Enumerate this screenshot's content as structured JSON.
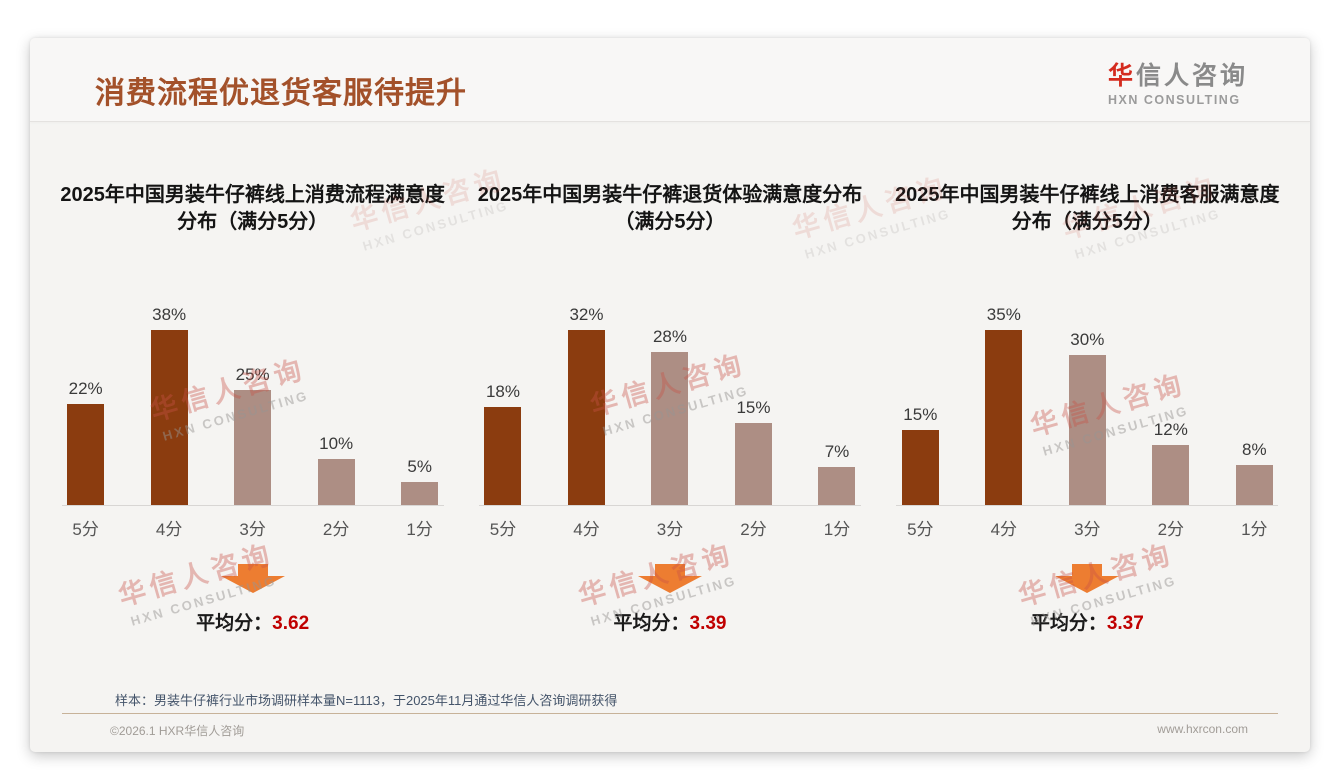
{
  "page_title": "消费流程优退货客服待提升",
  "logo": {
    "cn_highlight": "华",
    "cn_rest": "信人咨询",
    "en": "HXN CONSULTING"
  },
  "watermark": {
    "line1": "华信人咨询",
    "line2": "HXN CONSULTING"
  },
  "chart_data": [
    {
      "type": "bar",
      "title": "2025年中国男装牛仔裤线上消费流程满意度分布（满分5分）",
      "categories": [
        "5分",
        "4分",
        "3分",
        "2分",
        "1分"
      ],
      "values": [
        22,
        38,
        25,
        10,
        5
      ],
      "value_labels": [
        "22%",
        "38%",
        "25%",
        "10%",
        "5%"
      ],
      "bar_colors": [
        "#8B3C0F",
        "#8B3C0F",
        "#AD8E84",
        "#AD8E84",
        "#AD8E84"
      ],
      "average_label": "平均分：",
      "average_value": "3.62",
      "xlabel": "",
      "ylabel": "",
      "ylim": [
        0,
        40
      ],
      "grid": false,
      "legend": false
    },
    {
      "type": "bar",
      "title": "2025年中国男装牛仔裤退货体验满意度分布（满分5分）",
      "categories": [
        "5分",
        "4分",
        "3分",
        "2分",
        "1分"
      ],
      "values": [
        18,
        32,
        28,
        15,
        7
      ],
      "value_labels": [
        "18%",
        "32%",
        "28%",
        "15%",
        "7%"
      ],
      "bar_colors": [
        "#8B3C0F",
        "#8B3C0F",
        "#AD8E84",
        "#AD8E84",
        "#AD8E84"
      ],
      "average_label": "平均分：",
      "average_value": "3.39",
      "xlabel": "",
      "ylabel": "",
      "ylim": [
        0,
        35
      ],
      "grid": false,
      "legend": false
    },
    {
      "type": "bar",
      "title": "2025年中国男装牛仔裤线上消费客服满意度分布（满分5分）",
      "categories": [
        "5分",
        "4分",
        "3分",
        "2分",
        "1分"
      ],
      "values": [
        15,
        35,
        30,
        12,
        8
      ],
      "value_labels": [
        "15%",
        "35%",
        "30%",
        "12%",
        "8%"
      ],
      "bar_colors": [
        "#8B3C0F",
        "#8B3C0F",
        "#AD8E84",
        "#AD8E84",
        "#AD8E84"
      ],
      "average_label": "平均分：",
      "average_value": "3.37",
      "xlabel": "",
      "ylabel": "",
      "ylim": [
        0,
        40
      ],
      "grid": false,
      "legend": false
    }
  ],
  "note": "样本：男装牛仔裤行业市场调研样本量N=1113，于2025年11月通过华信人咨询调研获得",
  "footer": {
    "copyright": "©2026.1 HXR华信人咨询",
    "website": "www.hxrcon.com"
  },
  "colors": {
    "title_brown": "#A3512A",
    "dark_bar": "#8B3C0F",
    "light_bar": "#AD8E84",
    "accent_red": "#C00000",
    "logo_red": "#D42B1E",
    "arrow_orange": "#ED7D31",
    "card_bg": "#F5F4F2"
  }
}
